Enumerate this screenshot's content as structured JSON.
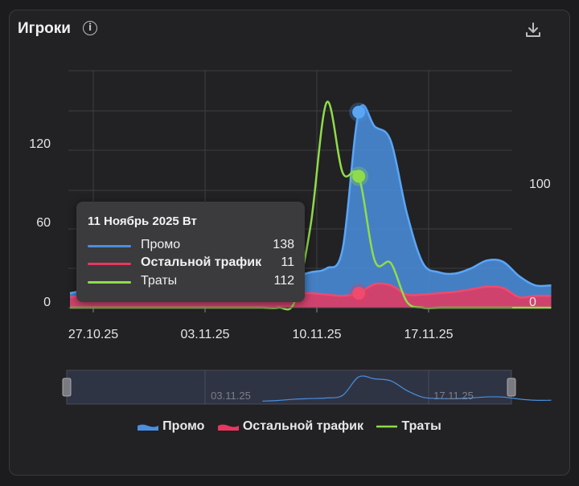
{
  "card": {
    "title": "Игроки",
    "info_icon": "info-icon",
    "download_icon": "download-icon"
  },
  "colors": {
    "promo": "#4a8fe0",
    "other": "#e8375e",
    "spend": "#8fdc4a",
    "background": "#222124"
  },
  "chart_data": {
    "type": "area",
    "x": [
      "24.10.25",
      "25.10.25",
      "26.10.25",
      "27.10.25",
      "28.10.25",
      "29.10.25",
      "30.10.25",
      "31.10.25",
      "01.11.25",
      "02.11.25",
      "03.11.25",
      "04.11.25",
      "05.11.25",
      "06.11.25",
      "07.11.25",
      "08.11.25",
      "09.11.25",
      "10.11.25",
      "11.11.25",
      "12.11.25",
      "13.11.25",
      "14.11.25",
      "15.11.25",
      "16.11.25",
      "17.11.25",
      "18.11.25",
      "19.11.25",
      "20.11.25",
      "21.11.25",
      "22.11.25",
      "23.11.25"
    ],
    "x_ticks": [
      "27.10.25",
      "03.11.25",
      "10.11.25",
      "17.11.25"
    ],
    "y_left_ticks": [
      "0",
      "60",
      "120"
    ],
    "y_right_ticks": [
      "0",
      "100"
    ],
    "y_left_range": [
      0,
      180
    ],
    "y_right_range": [
      0,
      200
    ],
    "grid": true,
    "legend_position": "bottom",
    "series": [
      {
        "name": "Промо",
        "axis": "left",
        "kind": "area",
        "values": [
          3,
          4,
          3,
          3,
          3,
          4,
          3,
          3,
          3,
          3,
          3,
          3,
          3,
          6,
          12,
          16,
          20,
          36,
          138,
          120,
          110,
          62,
          24,
          16,
          14,
          16,
          20,
          20,
          16,
          8,
          8
        ]
      },
      {
        "name": "Остальной трафик",
        "axis": "left",
        "kind": "area",
        "values": [
          8,
          9,
          9,
          8,
          8,
          9,
          10,
          11,
          12,
          12,
          9,
          8,
          9,
          10,
          11,
          11,
          10,
          9,
          11,
          18,
          17,
          10,
          10,
          11,
          12,
          14,
          16,
          15,
          8,
          9,
          9
        ]
      },
      {
        "name": "Траты",
        "axis": "right",
        "kind": "line",
        "values": [
          0,
          0,
          0,
          0,
          0,
          0,
          0,
          0,
          0,
          0,
          0,
          0,
          0,
          0,
          5,
          70,
          175,
          115,
          112,
          40,
          38,
          5,
          0,
          0,
          0,
          0,
          0,
          0,
          0,
          0,
          0
        ]
      }
    ]
  },
  "tooltip": {
    "date": "11 Ноябрь 2025 Вт",
    "rows": [
      {
        "name": "Промо",
        "value": "138"
      },
      {
        "name": "Остальной трафик",
        "value": "11"
      },
      {
        "name": "Траты",
        "value": "112"
      }
    ]
  },
  "navigator": {
    "ticks": [
      "03.11.25",
      "17.11.25"
    ]
  },
  "legend": [
    {
      "label": "Промо"
    },
    {
      "label": "Остальной трафик"
    },
    {
      "label": "Траты"
    }
  ]
}
